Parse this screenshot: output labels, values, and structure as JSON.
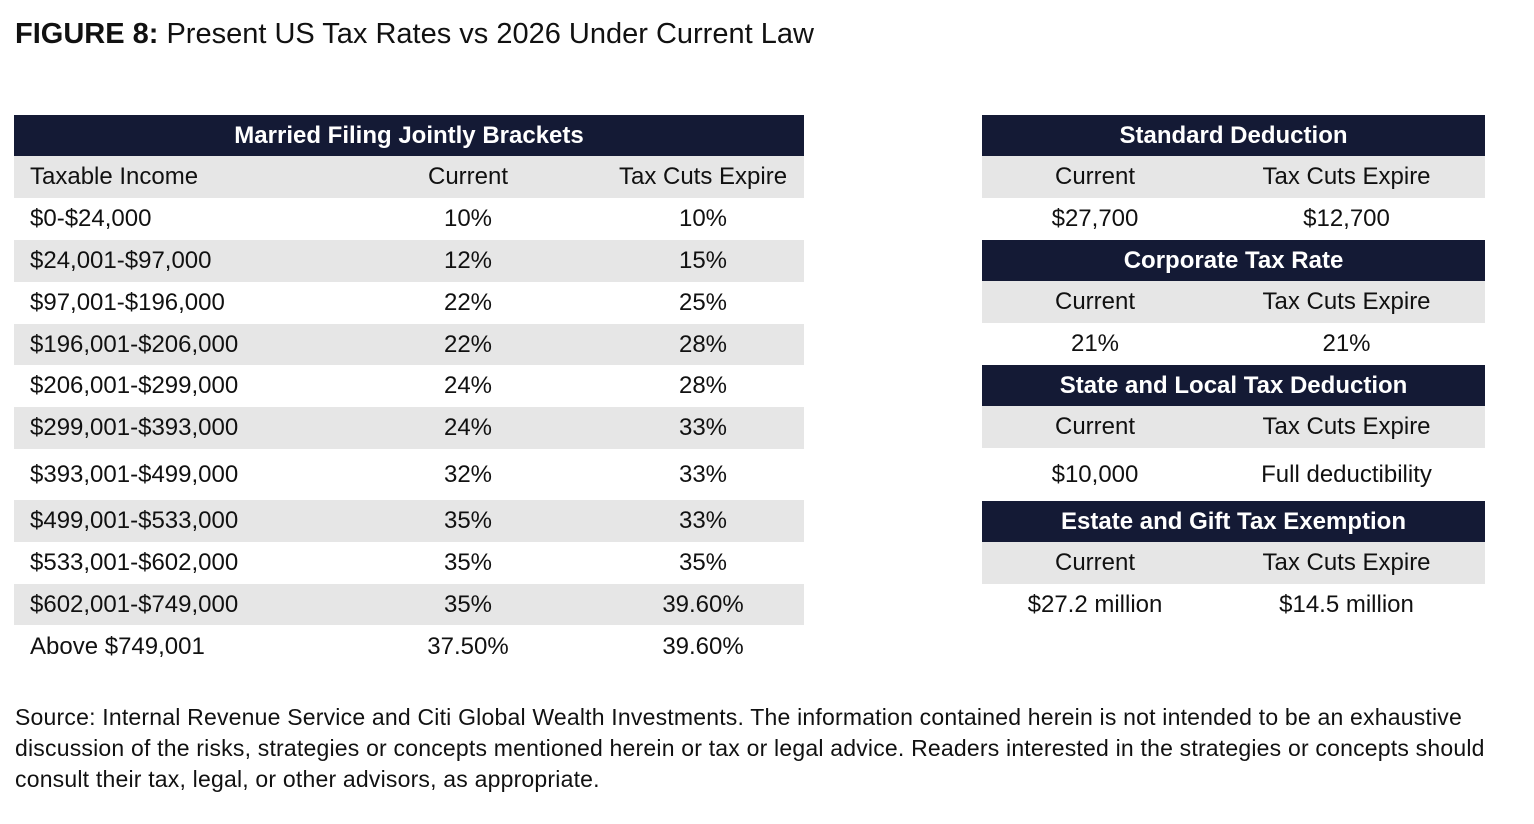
{
  "figure": {
    "label": "FIGURE 8:",
    "title": "Present US Tax Rates vs 2026 Under Current Law"
  },
  "brackets": {
    "heading": "Married Filing Jointly Brackets",
    "columns": [
      "Taxable Income",
      "Current",
      "Tax Cuts Expire"
    ],
    "rows": [
      [
        "$0-$24,000",
        "10%",
        "10%"
      ],
      [
        "$24,001-$97,000",
        "12%",
        "15%"
      ],
      [
        "$97,001-$196,000",
        "22%",
        "25%"
      ],
      [
        "$196,001-$206,000",
        "22%",
        "28%"
      ],
      [
        "$206,001-$299,000",
        "24%",
        "28%"
      ],
      [
        "$299,001-$393,000",
        "24%",
        "33%"
      ],
      [
        "$393,001-$499,000",
        "32%",
        "33%"
      ],
      [
        "$499,001-$533,000",
        "35%",
        "33%"
      ],
      [
        "$533,001-$602,000",
        "35%",
        "35%"
      ],
      [
        "$602,001-$749,000",
        "35%",
        "39.60%"
      ],
      [
        "Above $749,001",
        "37.50%",
        "39.60%"
      ]
    ]
  },
  "sections": [
    {
      "heading": "Standard Deduction",
      "columns": [
        "Current",
        "Tax Cuts Expire"
      ],
      "values": [
        "$27,700",
        "$12,700"
      ]
    },
    {
      "heading": "Corporate Tax Rate",
      "columns": [
        "Current",
        "Tax Cuts Expire"
      ],
      "values": [
        "21%",
        "21%"
      ]
    },
    {
      "heading": "State and Local Tax Deduction",
      "columns": [
        "Current",
        "Tax Cuts Expire"
      ],
      "values": [
        "$10,000",
        "Full deductibility"
      ]
    },
    {
      "heading": "Estate and Gift Tax Exemption",
      "columns": [
        "Current",
        "Tax Cuts Expire"
      ],
      "values": [
        "$27.2 million",
        "$14.5 million"
      ]
    }
  ],
  "source_note": "Source: Internal Revenue Service and Citi Global Wealth Investments. The information contained herein is not intended to be an exhaustive discussion of the risks, strategies or concepts mentioned herein or tax or legal advice. Readers interested in the strategies or concepts should consult their tax, legal, or other advisors, as appropriate.",
  "colors": {
    "header_bg": "#141a35",
    "header_text": "#ffffff",
    "shade_row": "#e6e6e6"
  }
}
